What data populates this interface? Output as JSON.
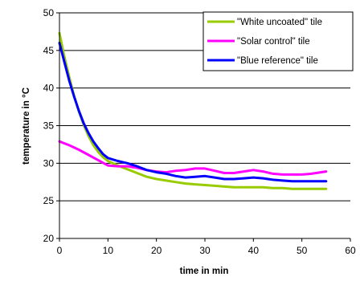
{
  "chart_data": {
    "type": "line",
    "xlabel": "time in min",
    "ylabel": "temperature in °C",
    "xlim": [
      0,
      60
    ],
    "ylim": [
      20,
      50
    ],
    "x_ticks": [
      0,
      10,
      20,
      30,
      40,
      50,
      60
    ],
    "y_ticks": [
      20,
      25,
      30,
      35,
      40,
      45,
      50
    ],
    "grid": "horizontal",
    "legend_position": "top-right",
    "series": [
      {
        "name": "\"White uncoated\" tile",
        "color": "#99cc00",
        "x": [
          0,
          1,
          2,
          3,
          4,
          5,
          6,
          7,
          8,
          9,
          10,
          12,
          14,
          16,
          18,
          20,
          22,
          24,
          26,
          28,
          30,
          32,
          34,
          36,
          38,
          40,
          42,
          44,
          46,
          48,
          50,
          52,
          55
        ],
        "y": [
          47.3,
          44.2,
          41.5,
          39.0,
          36.9,
          35.1,
          33.6,
          32.4,
          31.5,
          30.8,
          30.3,
          29.7,
          29.2,
          28.7,
          28.2,
          27.9,
          27.7,
          27.5,
          27.3,
          27.2,
          27.1,
          27.0,
          26.9,
          26.8,
          26.8,
          26.8,
          26.8,
          26.7,
          26.7,
          26.6,
          26.6,
          26.6,
          26.6
        ]
      },
      {
        "name": "\"Solar control\" tile",
        "color": "#ff00ff",
        "x": [
          0,
          2,
          4,
          6,
          8,
          10,
          12,
          14,
          16,
          18,
          20,
          22,
          24,
          26,
          28,
          30,
          32,
          34,
          36,
          38,
          40,
          42,
          44,
          46,
          48,
          50,
          52,
          55
        ],
        "y": [
          32.9,
          32.4,
          31.8,
          31.1,
          30.4,
          29.7,
          29.6,
          29.6,
          29.4,
          29.1,
          28.9,
          28.8,
          29.0,
          29.1,
          29.3,
          29.3,
          29.0,
          28.7,
          28.7,
          28.9,
          29.1,
          28.9,
          28.6,
          28.5,
          28.5,
          28.5,
          28.6,
          28.9
        ]
      },
      {
        "name": "\"Blue reference\" tile",
        "color": "#0000ff",
        "x": [
          0,
          1,
          2,
          3,
          4,
          5,
          6,
          7,
          8,
          9,
          10,
          12,
          14,
          16,
          18,
          20,
          22,
          24,
          26,
          28,
          30,
          32,
          34,
          36,
          38,
          40,
          42,
          44,
          46,
          48,
          50,
          52,
          55
        ],
        "y": [
          46.0,
          43.5,
          41.0,
          38.9,
          37.0,
          35.3,
          34.0,
          32.9,
          32.0,
          31.2,
          30.7,
          30.3,
          30.0,
          29.6,
          29.1,
          28.8,
          28.6,
          28.3,
          28.1,
          28.2,
          28.3,
          28.1,
          27.9,
          27.9,
          28.0,
          28.1,
          28.0,
          27.8,
          27.7,
          27.6,
          27.6,
          27.6,
          27.6
        ]
      }
    ]
  }
}
